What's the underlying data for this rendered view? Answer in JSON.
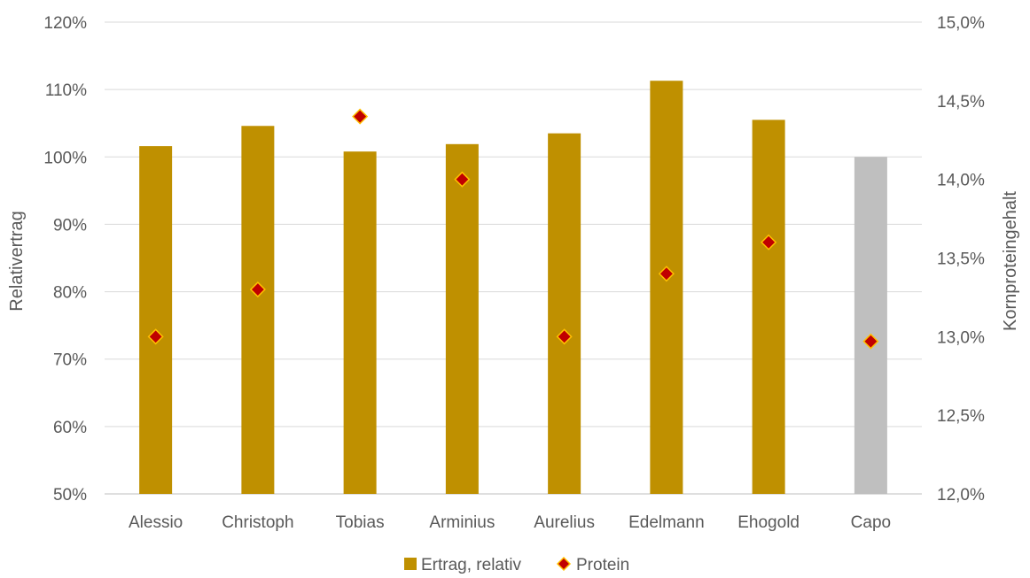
{
  "chart_data": {
    "type": "bar",
    "categories": [
      "Alessio",
      "Christoph",
      "Tobias",
      "Arminius",
      "Aurelius",
      "Edelmann",
      "Ehogold",
      "Capo"
    ],
    "series": [
      {
        "name": "Ertrag, relativ",
        "axis": "left",
        "mark": "bar",
        "color": "#BF9000",
        "highlight_color": "#BFBFBF",
        "highlight_category": "Capo",
        "values": [
          101.6,
          104.6,
          100.8,
          101.9,
          103.5,
          111.3,
          105.5,
          100.0
        ]
      },
      {
        "name": "Protein",
        "axis": "right",
        "mark": "diamond",
        "color": "#C00000",
        "edge_color": "#FFC000",
        "values": [
          13.0,
          13.3,
          14.4,
          14.0,
          13.0,
          13.4,
          13.6,
          12.97
        ]
      }
    ],
    "ylabel": "Relativertrag",
    "ylabel_right": "Kornproteingehalt",
    "ylim": [
      50,
      120
    ],
    "ylim_right": [
      12.0,
      15.0
    ],
    "yticks": [
      "50%",
      "60%",
      "70%",
      "80%",
      "90%",
      "100%",
      "110%",
      "120%"
    ],
    "yticks_right": [
      "12,0%",
      "12,5%",
      "13,0%",
      "13,5%",
      "14,0%",
      "14,5%",
      "15,0%"
    ],
    "grid": true,
    "legend_position": "bottom"
  }
}
